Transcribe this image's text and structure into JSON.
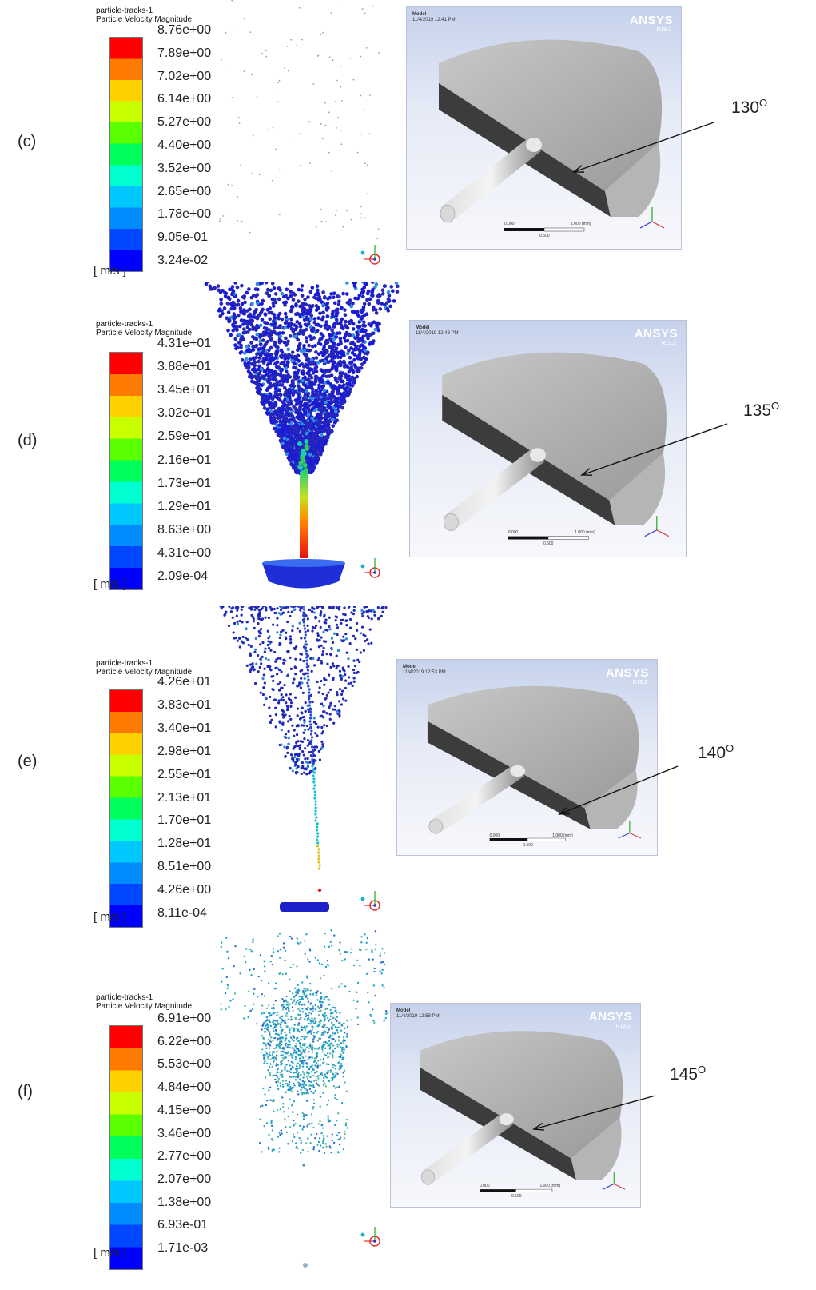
{
  "panels": [
    {
      "id": "c",
      "label": "(c)",
      "plot_title_line1": "particle-tracks-1",
      "plot_title_line2": "Particle Velocity Magnitude",
      "ticks": [
        "8.76e+00",
        "7.89e+00",
        "7.02e+00",
        "6.14e+00",
        "5.27e+00",
        "4.40e+00",
        "3.52e+00",
        "2.65e+00",
        "1.78e+00",
        "9.05e-01",
        "3.24e-02"
      ],
      "unit": "[ m/s ]",
      "model_header": "Model",
      "model_date": "11/4/2019 12:41 PM",
      "brand": "ANSYS",
      "version": "R19.2",
      "scale_left": "0.000",
      "scale_right": "1.000 (mm)",
      "scale_mid": "0.500",
      "angle_value": "130",
      "angle_unit": "O",
      "spray": "sparse"
    },
    {
      "id": "d",
      "label": "(d)",
      "plot_title_line1": "particle-tracks-1",
      "plot_title_line2": "Particle Velocity Magnitude",
      "ticks": [
        "4.31e+01",
        "3.88e+01",
        "3.45e+01",
        "3.02e+01",
        "2.59e+01",
        "2.16e+01",
        "1.73e+01",
        "1.29e+01",
        "8.63e+00",
        "4.31e+00",
        "2.09e-04"
      ],
      "unit": "[ m/s ]",
      "model_header": "Model",
      "model_date": "11/4/2019 12:48 PM",
      "brand": "ANSYS",
      "version": "R19.2",
      "scale_left": "0.000",
      "scale_right": "1.000 (mm)",
      "scale_mid": "0.500",
      "angle_value": "135",
      "angle_unit": "O",
      "spray": "dense"
    },
    {
      "id": "e",
      "label": "(e)",
      "plot_title_line1": "particle-tracks-1",
      "plot_title_line2": "Particle Velocity Magnitude",
      "ticks": [
        "4.26e+01",
        "3.83e+01",
        "3.40e+01",
        "2.98e+01",
        "2.55e+01",
        "2.13e+01",
        "1.70e+01",
        "1.28e+01",
        "8.51e+00",
        "4.26e+00",
        "8.11e-04"
      ],
      "unit": "[ m/s ]",
      "model_header": "Model",
      "model_date": "11/4/2019 12:53 PM",
      "brand": "ANSYS",
      "version": "R19.2",
      "scale_left": "0.000",
      "scale_right": "1.000 (mm)",
      "scale_mid": "0.500",
      "angle_value": "140",
      "angle_unit": "O",
      "spray": "medium"
    },
    {
      "id": "f",
      "label": "(f)",
      "plot_title_line1": "particle-tracks-1",
      "plot_title_line2": "Particle Velocity Magnitude",
      "ticks": [
        "6.91e+00",
        "6.22e+00",
        "5.53e+00",
        "4.84e+00",
        "4.15e+00",
        "3.46e+00",
        "2.77e+00",
        "2.07e+00",
        "1.38e+00",
        "6.93e-01",
        "1.71e-03"
      ],
      "unit": "[ m/s ]",
      "model_header": "Model",
      "model_date": "11/4/2019 12:58 PM",
      "brand": "ANSYS",
      "version": "R19.2",
      "scale_left": "0.000",
      "scale_right": "1.000 (mm)",
      "scale_mid": "0.500",
      "angle_value": "145",
      "angle_unit": "O",
      "spray": "cloud"
    }
  ],
  "colors": {
    "colormap": [
      "#0000ff",
      "#0047ff",
      "#008cff",
      "#00c8ff",
      "#00ffd0",
      "#00ff5a",
      "#5aff00",
      "#c8ff00",
      "#ffd000",
      "#ff7a00",
      "#ff0000"
    ],
    "model_dark": "#3c3c3c",
    "model_light": "#bdbdbd",
    "particle_dark": "#1a1ad0"
  }
}
